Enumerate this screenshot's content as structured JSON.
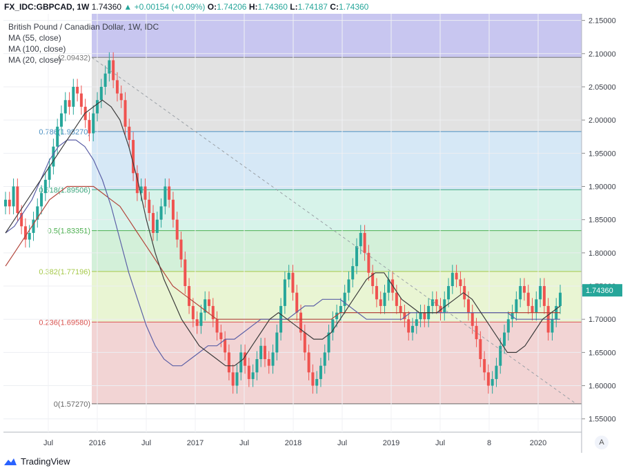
{
  "header": {
    "symbol": "FX_IDC:GBPCAD, 1W",
    "last": "1.74360",
    "change": "+0.00154 (+0.09%)",
    "o_label": "O:",
    "o": "1.74206",
    "h_label": "H:",
    "h": "1.74360",
    "l_label": "L:",
    "l": "1.74187",
    "c_label": "C:",
    "c": "1.74360"
  },
  "legend": [
    "British Pound / Canadian Dollar, 1W, IDC",
    "MA (55, close)",
    "MA (100, close)",
    "MA (20, close)"
  ],
  "brand": "TradingView",
  "axis_button": "A",
  "colors": {
    "up": "#26a69a",
    "down": "#ef5350",
    "ma55": "#3b3b3b",
    "ma100": "#5b5fa6",
    "ma20": "#b2453b",
    "trend": "#9aa0a6"
  },
  "chart_data": {
    "type": "candlestick",
    "title": "British Pound / Canadian Dollar, 1W, IDC",
    "ylim": [
      1.53,
      2.16
    ],
    "y_ticks": [
      "2.15000",
      "2.10000",
      "2.05000",
      "2.00000",
      "1.95000",
      "1.90000",
      "1.85000",
      "1.80000",
      "1.75000",
      "1.70000",
      "1.65000",
      "1.60000",
      "1.55000"
    ],
    "x_ticks": [
      "Jul",
      "2016",
      "Jul",
      "2017",
      "Jul",
      "2018",
      "Jul",
      "2019",
      "Jul",
      "8",
      "2020"
    ],
    "price_label": "1.74360",
    "fibonacci": [
      {
        "label": "(2.09432)",
        "value": 2.09432
      },
      {
        "label": "0.786(1.98270)",
        "value": 1.9827
      },
      {
        "label": "0.618(1.89506)",
        "value": 1.89506
      },
      {
        "label": "0.5(1.83351)",
        "value": 1.83351
      },
      {
        "label": "0.382(1.77196)",
        "value": 1.77196
      },
      {
        "label": "0.236(1.69580)",
        "value": 1.6958
      },
      {
        "label": "0(1.57270)",
        "value": 1.5727
      }
    ],
    "series_closes": [
      1.88,
      1.87,
      1.9,
      1.86,
      1.84,
      1.82,
      1.83,
      1.85,
      1.87,
      1.89,
      1.91,
      1.93,
      1.96,
      1.99,
      2.01,
      2.03,
      2.02,
      2.05,
      2.04,
      2.02,
      2.0,
      1.98,
      2.01,
      2.03,
      2.05,
      2.07,
      2.09,
      2.06,
      2.04,
      2.03,
      1.99,
      1.97,
      1.92,
      1.89,
      1.9,
      1.88,
      1.86,
      1.83,
      1.85,
      1.87,
      1.9,
      1.88,
      1.85,
      1.82,
      1.79,
      1.75,
      1.72,
      1.7,
      1.69,
      1.71,
      1.73,
      1.72,
      1.7,
      1.68,
      1.67,
      1.65,
      1.62,
      1.6,
      1.62,
      1.65,
      1.63,
      1.61,
      1.62,
      1.64,
      1.66,
      1.64,
      1.63,
      1.65,
      1.68,
      1.72,
      1.76,
      1.77,
      1.74,
      1.71,
      1.68,
      1.65,
      1.62,
      1.6,
      1.61,
      1.63,
      1.65,
      1.68,
      1.7,
      1.71,
      1.72,
      1.74,
      1.76,
      1.78,
      1.81,
      1.83,
      1.8,
      1.77,
      1.75,
      1.73,
      1.72,
      1.74,
      1.76,
      1.74,
      1.72,
      1.71,
      1.7,
      1.68,
      1.69,
      1.7,
      1.71,
      1.7,
      1.72,
      1.73,
      1.72,
      1.71,
      1.73,
      1.75,
      1.77,
      1.76,
      1.75,
      1.73,
      1.71,
      1.69,
      1.67,
      1.64,
      1.62,
      1.6,
      1.61,
      1.63,
      1.66,
      1.68,
      1.7,
      1.71,
      1.73,
      1.75,
      1.74,
      1.72,
      1.71,
      1.73,
      1.75,
      1.72,
      1.68,
      1.7,
      1.72,
      1.74
    ],
    "ma55": [
      1.83,
      1.85,
      1.87,
      1.89,
      1.91,
      1.93,
      1.95,
      1.97,
      1.99,
      2.01,
      2.02,
      2.03,
      2.02,
      2.0,
      1.96,
      1.91,
      1.85,
      1.8,
      1.76,
      1.73,
      1.7,
      1.68,
      1.66,
      1.65,
      1.64,
      1.63,
      1.63,
      1.64,
      1.66,
      1.68,
      1.7,
      1.71,
      1.7,
      1.69,
      1.68,
      1.67,
      1.67,
      1.68,
      1.7,
      1.72,
      1.74,
      1.76,
      1.77,
      1.77,
      1.75,
      1.73,
      1.72,
      1.71,
      1.71,
      1.71,
      1.72,
      1.73,
      1.74,
      1.73,
      1.71,
      1.69,
      1.67,
      1.65,
      1.65,
      1.66,
      1.68,
      1.7,
      1.71,
      1.72
    ],
    "ma100": [
      1.83,
      1.84,
      1.86,
      1.88,
      1.91,
      1.94,
      1.96,
      1.97,
      1.97,
      1.96,
      1.94,
      1.91,
      1.87,
      1.82,
      1.77,
      1.73,
      1.69,
      1.66,
      1.64,
      1.63,
      1.63,
      1.64,
      1.65,
      1.66,
      1.66,
      1.67,
      1.67,
      1.68,
      1.69,
      1.7,
      1.7,
      1.7,
      1.7,
      1.71,
      1.72,
      1.72,
      1.73,
      1.73,
      1.73,
      1.72,
      1.71,
      1.7,
      1.7,
      1.7,
      1.7,
      1.7,
      1.71,
      1.71,
      1.71,
      1.71,
      1.71,
      1.71,
      1.71,
      1.71,
      1.71,
      1.71,
      1.71,
      1.71,
      1.7,
      1.7,
      1.7,
      1.7,
      1.7,
      1.7
    ],
    "ma20": [
      1.78,
      1.8,
      1.82,
      1.84,
      1.86,
      1.88,
      1.89,
      1.9,
      1.9,
      1.9,
      1.9,
      1.89,
      1.88,
      1.87,
      1.85,
      1.83,
      1.81,
      1.79,
      1.77,
      1.75,
      1.74,
      1.73,
      1.72,
      1.71,
      1.7,
      1.7,
      1.7,
      1.7,
      1.7,
      1.7,
      1.7,
      1.7,
      1.7,
      1.7,
      1.7,
      1.7,
      1.7,
      1.7,
      1.71,
      1.71,
      1.71,
      1.71,
      1.71,
      1.71,
      1.71,
      1.71,
      1.71,
      1.71,
      1.71,
      1.71,
      1.71,
      1.71,
      1.71,
      1.71,
      1.71,
      1.71,
      1.71,
      1.71,
      1.71,
      1.71,
      1.71,
      1.71,
      1.71,
      1.71
    ]
  }
}
